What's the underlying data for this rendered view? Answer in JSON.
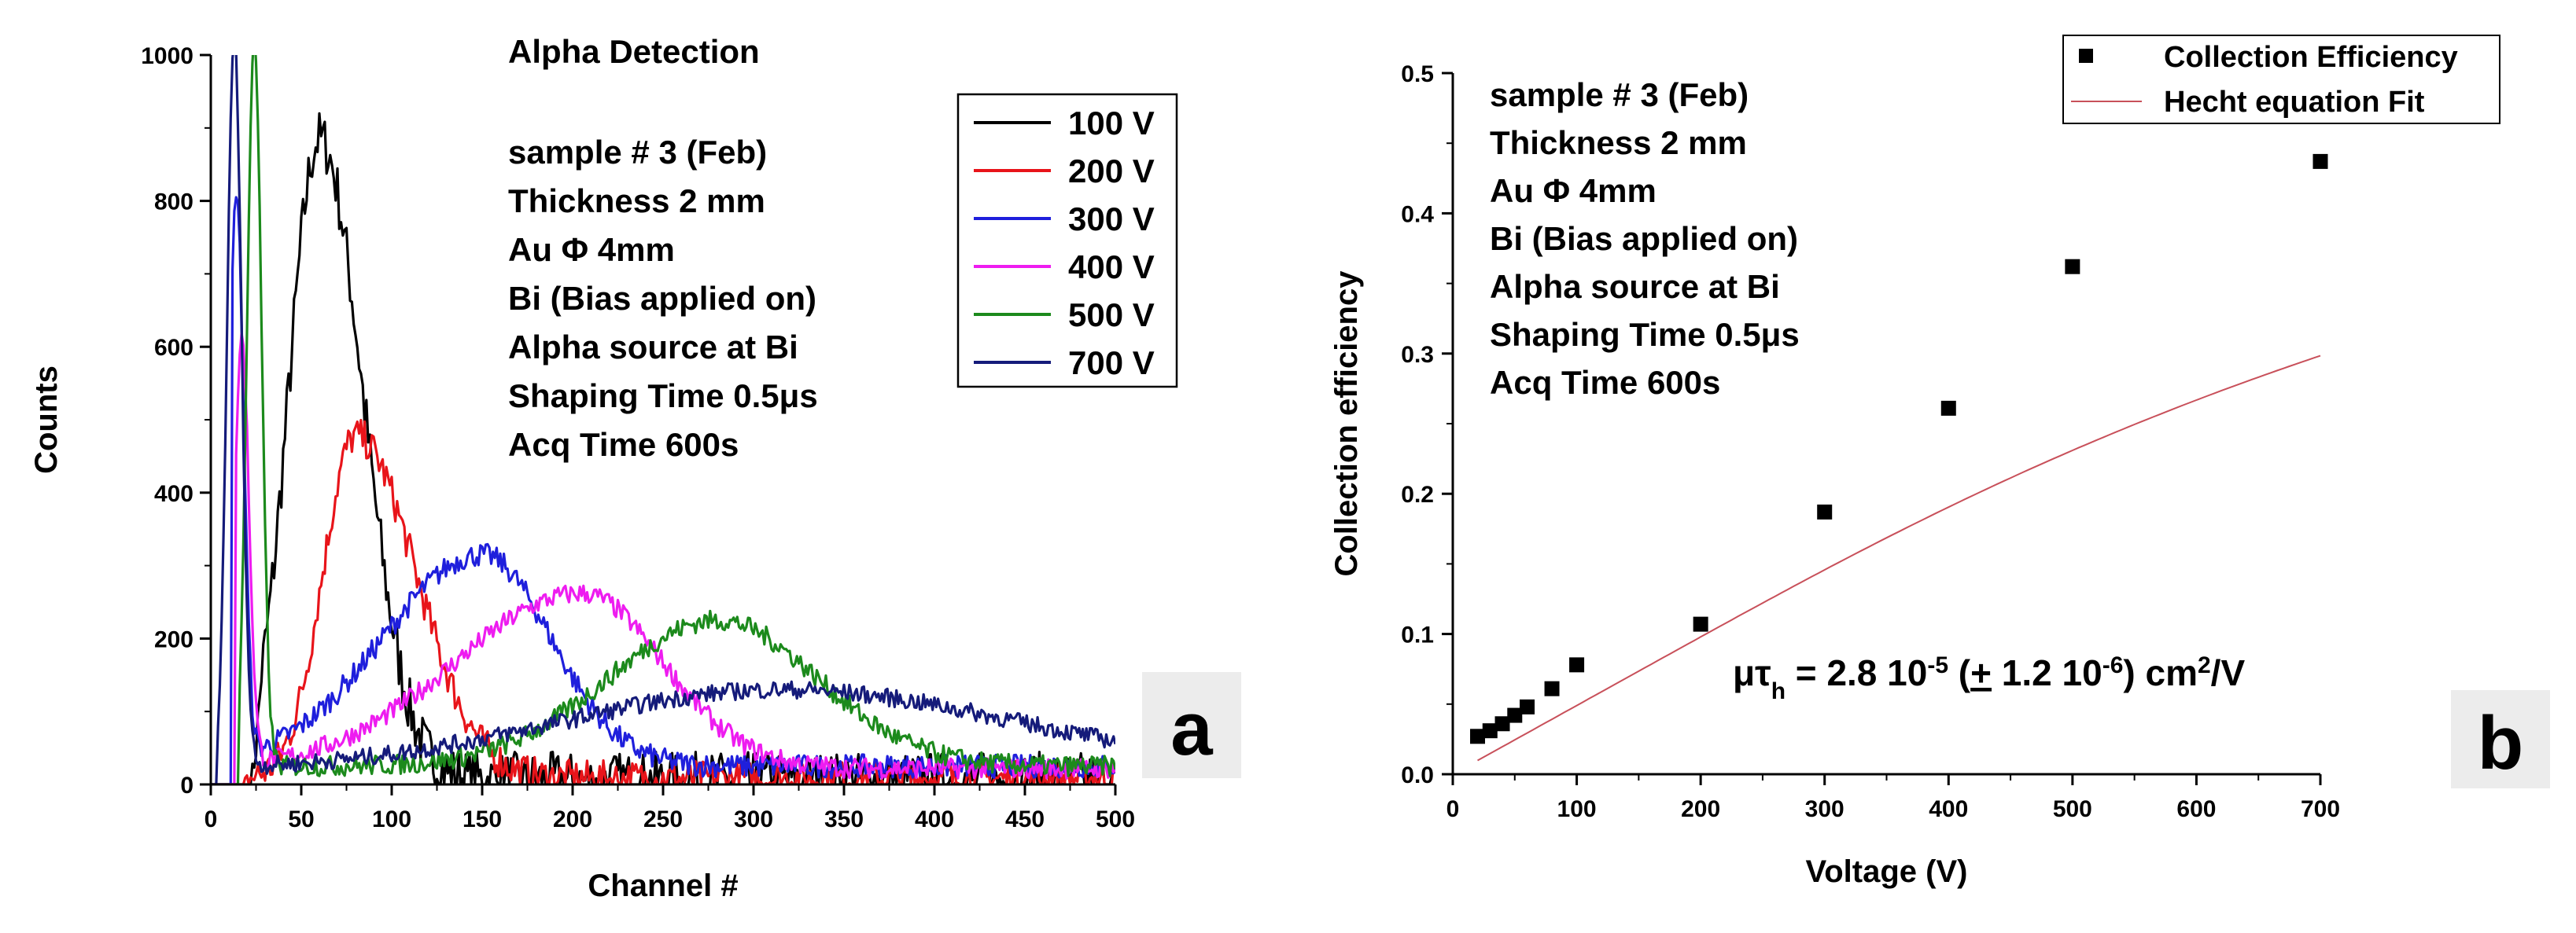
{
  "chart_data": [
    {
      "type": "line",
      "panel_label": "a",
      "title": "Alpha Detection",
      "xlabel": "Channel #",
      "ylabel": "Counts",
      "xlim": [
        0,
        500
      ],
      "ylim": [
        0,
        1000
      ],
      "x_ticks": [
        0,
        50,
        100,
        150,
        200,
        250,
        300,
        350,
        400,
        450,
        500
      ],
      "y_ticks": [
        0,
        200,
        400,
        600,
        800,
        1000
      ],
      "info_lines": [
        "sample #  3 (Feb)",
        "Thickness 2 mm",
        "Au Φ 4mm",
        "Bi (Bias applied on)",
        "Alpha source at Bi",
        "Shaping Time 0.5μs",
        "Acq Time 600s"
      ],
      "legend_position": "top-right",
      "series": [
        {
          "name": "100 V",
          "color": "#000000",
          "peak_channel": 60,
          "peak_counts": 880,
          "sigma_left": 17,
          "sigma_right": 24,
          "base": 5,
          "noise": 40,
          "onset": 22
        },
        {
          "name": "200 V",
          "color": "#e8141a",
          "peak_channel": 80,
          "peak_counts": 470,
          "sigma_left": 18,
          "sigma_right": 33,
          "base": 8,
          "noise": 25,
          "onset": 18
        },
        {
          "name": "300 V",
          "color": "#1f1fdc",
          "peak_channel": 150,
          "peak_counts": 290,
          "sigma_left": 55,
          "sigma_right": 38,
          "base": 25,
          "noise": 16,
          "onset": 12,
          "spike_channel": 14,
          "spike_counts": 800
        },
        {
          "name": "400 V",
          "color": "#ee1cf0",
          "peak_channel": 205,
          "peak_counts": 240,
          "sigma_left": 70,
          "sigma_right": 45,
          "base": 22,
          "noise": 14,
          "onset": 14,
          "spike_channel": 17,
          "spike_counts": 600
        },
        {
          "name": "500 V",
          "color": "#1c8a1c",
          "peak_channel": 280,
          "peak_counts": 200,
          "sigma_left": 60,
          "sigma_right": 55,
          "base": 25,
          "noise": 14,
          "onset": 16,
          "spike_channel": 24,
          "spike_counts": 1000
        },
        {
          "name": "700 V",
          "color": "#151b7a",
          "peak_channel": 315,
          "peak_counts": 110,
          "sigma_left": 120,
          "sigma_right": 130,
          "base": 20,
          "noise": 12,
          "onset": 4,
          "spike_channel": 13,
          "spike_counts": 1000
        }
      ]
    },
    {
      "type": "scatter",
      "panel_label": "b",
      "xlabel": "Voltage (V)",
      "ylabel": "Collection efficiency",
      "xlim": [
        0,
        700
      ],
      "ylim": [
        0,
        0.5
      ],
      "x_ticks": [
        0,
        100,
        200,
        300,
        400,
        500,
        600,
        700
      ],
      "y_ticks": [
        0.0,
        0.1,
        0.2,
        0.3,
        0.4,
        0.5
      ],
      "info_lines": [
        "sample #  3 (Feb)",
        "Thickness 2 mm",
        "Au Φ 4mm",
        "Bi (Bias applied on)",
        "Alpha source at Bi",
        "Shaping Time 0.5μs",
        "Acq Time 600s"
      ],
      "annotation": {
        "mu": "μτ",
        "sub": "h",
        "a": " = 2.8 10",
        "exp1": "-5",
        "b": " (",
        "pm": "+",
        "c": " 1.2 10",
        "exp2": "-6",
        "d": ") cm",
        "exp3": "2",
        "e": "/V"
      },
      "legend": [
        {
          "name": "Collection Efficiency",
          "marker": "square",
          "color": "#000000"
        },
        {
          "name": "Hecht equation Fit",
          "marker": "line",
          "color": "#c8505a"
        }
      ],
      "series": [
        {
          "name": "Collection Efficiency",
          "x": [
            20,
            30,
            40,
            50,
            60,
            80,
            100,
            200,
            300,
            400,
            500,
            700
          ],
          "y": [
            0.027,
            0.031,
            0.036,
            0.042,
            0.048,
            0.061,
            0.078,
            0.107,
            0.187,
            0.261,
            0.362,
            0.437
          ]
        },
        {
          "name": "Hecht equation Fit",
          "mu_tau": 2.8e-05,
          "thickness_cm": 0.2,
          "scale": 0.7,
          "x": [
            20,
            700
          ]
        }
      ]
    }
  ]
}
